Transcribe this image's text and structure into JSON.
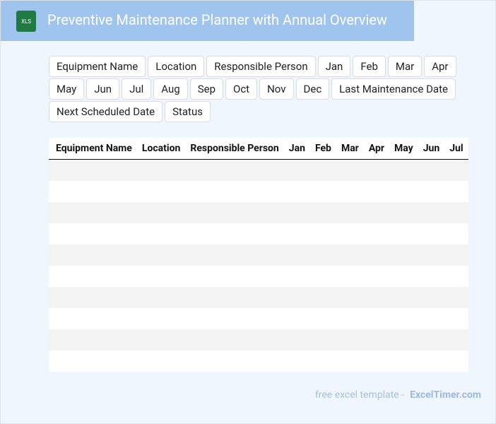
{
  "header": {
    "icon": "XLS",
    "title": "Preventive Maintenance Planner with Annual Overview"
  },
  "tags": [
    "Equipment Name",
    "Location",
    "Responsible Person",
    "Jan",
    "Feb",
    "Mar",
    "Apr",
    "May",
    "Jun",
    "Jul",
    "Aug",
    "Sep",
    "Oct",
    "Nov",
    "Dec",
    "Last Maintenance Date",
    "Next Scheduled Date",
    "Status"
  ],
  "table": {
    "columns": [
      "Equipment Name",
      "Location",
      "Responsible Person",
      "Jan",
      "Feb",
      "Mar",
      "Apr",
      "May",
      "Jun",
      "Jul"
    ]
  },
  "footer": {
    "text": "free excel template -",
    "brand": "ExcelTimer.com"
  }
}
